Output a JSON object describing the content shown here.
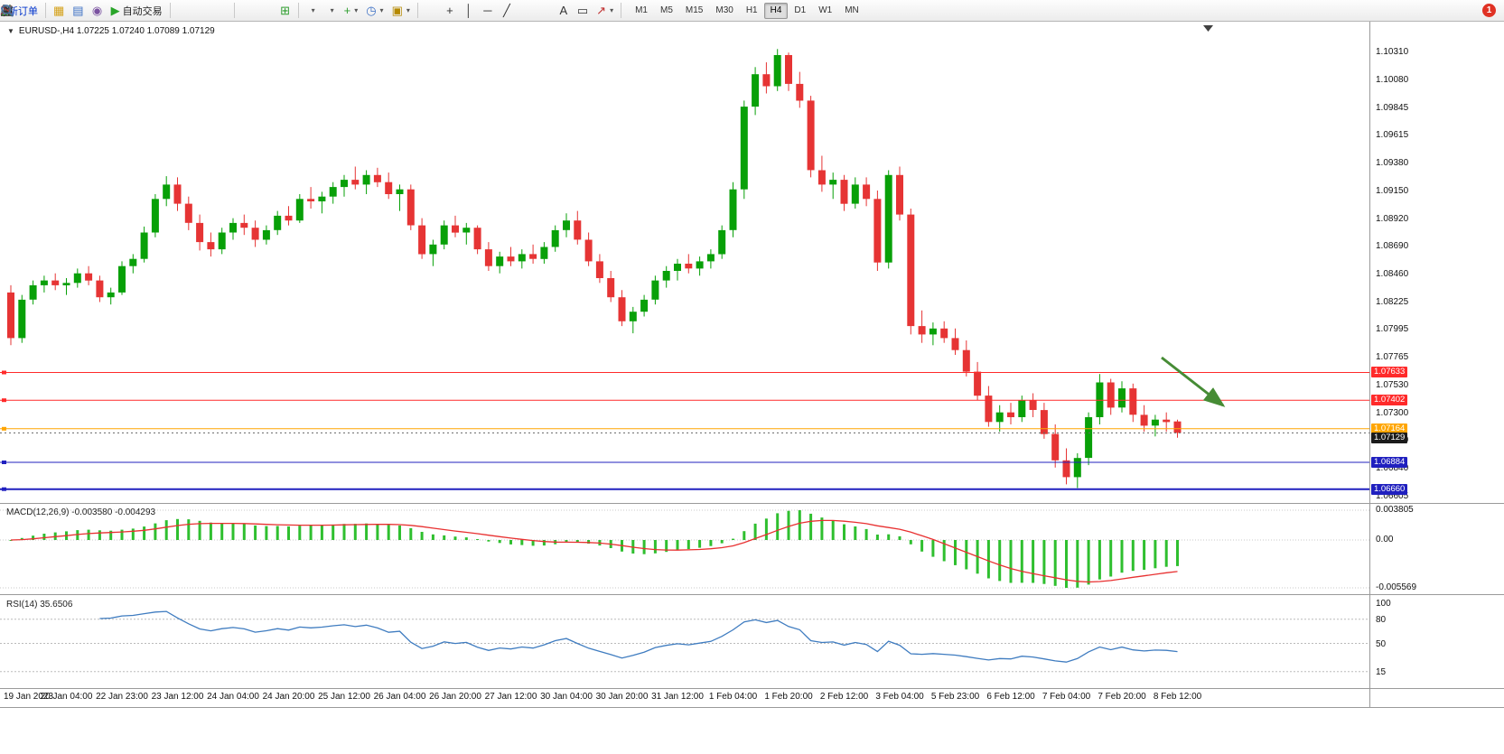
{
  "glyphs": {
    "dropdown_caret": "▾",
    "chart_menu": "▼"
  },
  "toolbar": {
    "notification_count": "1",
    "timeframes": [
      "M1",
      "M5",
      "M15",
      "M30",
      "H1",
      "H4",
      "D1",
      "W1",
      "MN"
    ],
    "active_timeframe": "H4",
    "groups": [
      {
        "items": [
          {
            "name": "new-order-button",
            "label": "新订单",
            "label_color": "#0033cc"
          }
        ]
      },
      {
        "items": [
          {
            "name": "chart-window-icon",
            "glyph": "▦",
            "color": "#d4a017"
          },
          {
            "name": "profiles-icon",
            "glyph": "▤",
            "color": "#3b6fc4"
          },
          {
            "name": "data-window-icon",
            "glyph": "◉",
            "color": "#7a52a0"
          },
          {
            "name": "auto-trading-button",
            "glyph": "▶",
            "color": "#28a428",
            "label": "自动交易",
            "label_color": "#222222"
          }
        ]
      },
      {
        "items": [
          {
            "name": "bar-chart-icon",
            "icon": "bars"
          },
          {
            "name": "candlestick-chart-icon",
            "icon": "candles"
          },
          {
            "name": "line-chart-icon",
            "icon": "linechart"
          }
        ]
      },
      {
        "items": [
          {
            "name": "zoom-in-icon",
            "icon": "zoomin"
          },
          {
            "name": "zoom-out-icon",
            "icon": "zoomout"
          },
          {
            "name": "tile-windows-icon",
            "glyph": "⊞",
            "color": "#2f9e2f"
          }
        ]
      },
      {
        "items": [
          {
            "name": "indicator-bars-icon",
            "icon": "indbars",
            "dropdown": true
          },
          {
            "name": "indicator-line-icon",
            "icon": "indline",
            "dropdown": true
          },
          {
            "name": "add-indicator-icon",
            "glyph": "+",
            "color": "#2f9e2f",
            "dropdown": true
          },
          {
            "name": "periods-icon",
            "glyph": "◷",
            "color": "#3b6fc4",
            "dropdown": true
          },
          {
            "name": "templates-icon",
            "glyph": "▣",
            "color": "#b58900",
            "dropdown": true
          }
        ]
      },
      {
        "items": [
          {
            "name": "cursor-icon",
            "icon": "cursor"
          },
          {
            "name": "crosshair-icon",
            "glyph": "+",
            "color": "#333333"
          },
          {
            "name": "vertical-line-icon",
            "glyph": "│",
            "color": "#333333"
          },
          {
            "name": "horizontal-line-icon",
            "glyph": "─",
            "color": "#333333"
          },
          {
            "name": "trendline-icon",
            "glyph": "╱",
            "color": "#333333"
          },
          {
            "name": "channel-icon",
            "icon": "channel"
          },
          {
            "name": "fibonacci-icon",
            "icon": "fib"
          },
          {
            "name": "text-icon",
            "glyph": "A",
            "color": "#333333"
          },
          {
            "name": "label-icon",
            "glyph": "▭",
            "color": "#333333"
          },
          {
            "name": "arrows-icon",
            "glyph": "↗",
            "color": "#c03030",
            "dropdown": true
          }
        ]
      }
    ]
  },
  "chart": {
    "symbol_info": "EURUSD-,H4  1.07225 1.07240 1.07089 1.07129",
    "current_price_label": "1.07129",
    "hlines": [
      {
        "price": 1.07633,
        "label": "1.07633",
        "color": "#ff2a2a",
        "width": 1
      },
      {
        "price": 1.07402,
        "label": "1.07402",
        "color": "#ff2a2a",
        "width": 1
      },
      {
        "price": 1.07164,
        "label": "1.07164",
        "color": "#ffa500",
        "width": 1
      },
      {
        "price": 1.06884,
        "label": "1.06884",
        "color": "#2020bf",
        "width": 1
      },
      {
        "price": 1.0666,
        "label": "1.06660",
        "color": "#2020bf",
        "width": 2
      }
    ]
  },
  "macd": {
    "label": "MACD(12,26,9) -0.003580 -0.004293",
    "axis": [
      "0.003805",
      "0.00",
      "-0.005569"
    ]
  },
  "rsi": {
    "label": "RSI(14) 35.6506",
    "axis": [
      "100",
      "80",
      "50",
      "15"
    ],
    "axis_values": [
      100,
      80,
      50,
      15
    ],
    "levels": [
      80,
      50,
      15
    ]
  },
  "chart_data": {
    "type": "candlestick",
    "title": "EURUSD- H4",
    "price_axis_ticks": [
      "1.10310",
      "1.10080",
      "1.09845",
      "1.09615",
      "1.09380",
      "1.09150",
      "1.08920",
      "1.08690",
      "1.08460",
      "1.08225",
      "1.07995",
      "1.07765",
      "1.07530",
      "1.07300",
      "1.07070",
      "1.06840",
      "1.06605"
    ],
    "time_labels": [
      "19 Jan 2023",
      "20 Jan 04:00",
      "22 Jan 23:00",
      "23 Jan 12:00",
      "24 Jan 04:00",
      "24 Jan 20:00",
      "25 Jan 12:00",
      "26 Jan 04:00",
      "26 Jan 20:00",
      "27 Jan 12:00",
      "30 Jan 04:00",
      "30 Jan 20:00",
      "31 Jan 12:00",
      "1 Feb 04:00",
      "1 Feb 20:00",
      "2 Feb 12:00",
      "3 Feb 04:00",
      "5 Feb 23:00",
      "6 Feb 12:00",
      "7 Feb 04:00",
      "7 Feb 20:00",
      "8 Feb 12:00"
    ],
    "indicators": [
      {
        "name": "MACD",
        "params": [
          12,
          26,
          9
        ],
        "values": [
          -0.00358,
          -0.004293
        ]
      },
      {
        "name": "RSI",
        "params": [
          14
        ],
        "value": 35.6506
      }
    ],
    "annotations": [
      {
        "type": "arrow",
        "direction": "down-right",
        "color": "#468c35"
      }
    ],
    "colors": {
      "up": "#08a008",
      "down": "#e63434",
      "macd_histogram": "#2fbf2f",
      "macd_signal": "#e83030",
      "rsi_line": "#3f7cc0"
    },
    "ohlc": [
      [
        1.083,
        1.0836,
        1.0786,
        1.0792
      ],
      [
        1.0792,
        1.0828,
        1.0788,
        1.0824
      ],
      [
        1.0824,
        1.084,
        1.082,
        1.0836
      ],
      [
        1.0836,
        1.0844,
        1.083,
        1.084
      ],
      [
        1.084,
        1.0846,
        1.0832,
        1.0836
      ],
      [
        1.0836,
        1.0842,
        1.0828,
        1.0838
      ],
      [
        1.0838,
        1.085,
        1.0834,
        1.0846
      ],
      [
        1.0846,
        1.0852,
        1.0836,
        1.084
      ],
      [
        1.084,
        1.0844,
        1.0822,
        1.0826
      ],
      [
        1.0826,
        1.0834,
        1.082,
        1.083
      ],
      [
        1.083,
        1.0856,
        1.0828,
        1.0852
      ],
      [
        1.0852,
        1.0862,
        1.0846,
        1.0858
      ],
      [
        1.0858,
        1.0885,
        1.0855,
        1.088
      ],
      [
        1.088,
        1.0912,
        1.0876,
        1.0908
      ],
      [
        1.0908,
        1.0927,
        1.0902,
        1.092
      ],
      [
        1.092,
        1.0926,
        1.0898,
        1.0904
      ],
      [
        1.0904,
        1.091,
        1.0882,
        1.0888
      ],
      [
        1.0888,
        1.0895,
        1.0865,
        1.0872
      ],
      [
        1.0872,
        1.088,
        1.086,
        1.0866
      ],
      [
        1.0866,
        1.0884,
        1.0862,
        1.088
      ],
      [
        1.088,
        1.0892,
        1.0874,
        1.0888
      ],
      [
        1.0888,
        1.0895,
        1.0878,
        1.0884
      ],
      [
        1.0884,
        1.089,
        1.0868,
        1.0874
      ],
      [
        1.0874,
        1.0886,
        1.087,
        1.0882
      ],
      [
        1.0882,
        1.0898,
        1.0878,
        1.0894
      ],
      [
        1.0894,
        1.0902,
        1.0886,
        1.089
      ],
      [
        1.089,
        1.0912,
        1.0888,
        1.0908
      ],
      [
        1.0908,
        1.0918,
        1.09,
        1.0906
      ],
      [
        1.0906,
        1.0914,
        1.0896,
        1.091
      ],
      [
        1.091,
        1.0922,
        1.0904,
        1.0918
      ],
      [
        1.0918,
        1.0928,
        1.091,
        1.0924
      ],
      [
        1.0924,
        1.0935,
        1.0916,
        1.092
      ],
      [
        1.092,
        1.0932,
        1.0912,
        1.0928
      ],
      [
        1.0928,
        1.0934,
        1.0918,
        1.0922
      ],
      [
        1.0922,
        1.093,
        1.0908,
        1.0912
      ],
      [
        1.0912,
        1.092,
        1.0898,
        1.0916
      ],
      [
        1.0916,
        1.092,
        1.0882,
        1.0886
      ],
      [
        1.0886,
        1.0892,
        1.0858,
        1.0862
      ],
      [
        1.0862,
        1.0874,
        1.0852,
        1.087
      ],
      [
        1.087,
        1.089,
        1.0866,
        1.0886
      ],
      [
        1.0886,
        1.0894,
        1.0876,
        1.088
      ],
      [
        1.088,
        1.0888,
        1.087,
        1.0884
      ],
      [
        1.0884,
        1.0886,
        1.0862,
        1.0866
      ],
      [
        1.0866,
        1.0872,
        1.0848,
        1.0852
      ],
      [
        1.0852,
        1.0864,
        1.0846,
        1.086
      ],
      [
        1.086,
        1.0868,
        1.0852,
        1.0856
      ],
      [
        1.0856,
        1.0866,
        1.085,
        1.0862
      ],
      [
        1.0862,
        1.087,
        1.0854,
        1.0858
      ],
      [
        1.0858,
        1.0872,
        1.0854,
        1.0868
      ],
      [
        1.0868,
        1.0886,
        1.0864,
        1.0882
      ],
      [
        1.0882,
        1.0896,
        1.0876,
        1.089
      ],
      [
        1.089,
        1.0898,
        1.087,
        1.0874
      ],
      [
        1.0874,
        1.088,
        1.0852,
        1.0856
      ],
      [
        1.0856,
        1.0862,
        1.0838,
        1.0842
      ],
      [
        1.0842,
        1.0848,
        1.0822,
        1.0826
      ],
      [
        1.0826,
        1.0832,
        1.0802,
        1.0806
      ],
      [
        1.0806,
        1.0818,
        1.0796,
        1.0814
      ],
      [
        1.0814,
        1.0828,
        1.081,
        1.0824
      ],
      [
        1.0824,
        1.0844,
        1.082,
        1.084
      ],
      [
        1.084,
        1.0852,
        1.0834,
        1.0848
      ],
      [
        1.0848,
        1.0858,
        1.084,
        1.0854
      ],
      [
        1.0854,
        1.0862,
        1.0846,
        1.085
      ],
      [
        1.085,
        1.086,
        1.0844,
        1.0856
      ],
      [
        1.0856,
        1.0866,
        1.085,
        1.0862
      ],
      [
        1.0862,
        1.0886,
        1.0858,
        1.0882
      ],
      [
        1.0882,
        1.0922,
        1.0876,
        1.0916
      ],
      [
        1.0916,
        1.099,
        1.0908,
        1.0985
      ],
      [
        1.0985,
        1.1018,
        1.0978,
        1.1012
      ],
      [
        1.1012,
        1.1022,
        1.0996,
        1.1002
      ],
      [
        1.1002,
        1.1033,
        1.0998,
        1.1028
      ],
      [
        1.1028,
        1.103,
        1.0998,
        1.1004
      ],
      [
        1.1004,
        1.1014,
        1.0984,
        1.099
      ],
      [
        1.099,
        1.0994,
        1.0926,
        1.0932
      ],
      [
        1.0932,
        1.0944,
        1.0914,
        1.092
      ],
      [
        1.092,
        1.093,
        1.0908,
        1.0924
      ],
      [
        1.0924,
        1.0928,
        1.0898,
        1.0904
      ],
      [
        1.0904,
        1.0926,
        1.09,
        1.092
      ],
      [
        1.092,
        1.0926,
        1.0902,
        1.0908
      ],
      [
        1.0908,
        1.0915,
        1.0848,
        1.0855
      ],
      [
        1.0855,
        1.0932,
        1.085,
        1.0928
      ],
      [
        1.0928,
        1.0935,
        1.089,
        1.0895
      ],
      [
        1.0895,
        1.09,
        1.0795,
        1.0802
      ],
      [
        1.0802,
        1.0815,
        1.0788,
        1.0795
      ],
      [
        1.0795,
        1.0805,
        1.0786,
        1.08
      ],
      [
        1.08,
        1.0806,
        1.0788,
        1.0792
      ],
      [
        1.0792,
        1.08,
        1.0778,
        1.0782
      ],
      [
        1.0782,
        1.079,
        1.076,
        1.0764
      ],
      [
        1.0764,
        1.0772,
        1.074,
        1.0744
      ],
      [
        1.0744,
        1.0752,
        1.0718,
        1.0722
      ],
      [
        1.0722,
        1.0736,
        1.0714,
        1.073
      ],
      [
        1.073,
        1.0738,
        1.072,
        1.0726
      ],
      [
        1.0726,
        1.0744,
        1.0722,
        1.074
      ],
      [
        1.074,
        1.0746,
        1.0726,
        1.0732
      ],
      [
        1.0732,
        1.0738,
        1.0708,
        1.0712
      ],
      [
        1.0712,
        1.072,
        1.0684,
        1.069
      ],
      [
        1.069,
        1.07,
        1.067,
        1.0676
      ],
      [
        1.0676,
        1.0696,
        1.0667,
        1.0692
      ],
      [
        1.0692,
        1.073,
        1.0686,
        1.0726
      ],
      [
        1.0726,
        1.0762,
        1.072,
        1.0755
      ],
      [
        1.0755,
        1.0758,
        1.0728,
        1.0734
      ],
      [
        1.0734,
        1.0756,
        1.073,
        1.075
      ],
      [
        1.075,
        1.0754,
        1.0722,
        1.0728
      ],
      [
        1.0728,
        1.0736,
        1.0714,
        1.0719
      ],
      [
        1.0719,
        1.0728,
        1.071,
        1.0724
      ],
      [
        1.0724,
        1.073,
        1.0714,
        1.0722
      ],
      [
        1.07225,
        1.0724,
        1.07089,
        1.07129
      ]
    ]
  }
}
